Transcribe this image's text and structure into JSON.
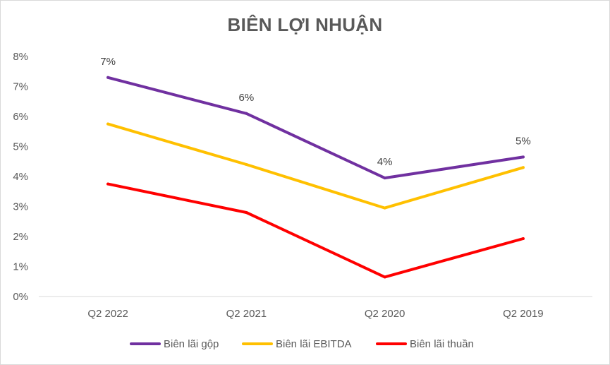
{
  "chart_data": {
    "type": "line",
    "title": "BIÊN LỢI NHUẬN",
    "xlabel": "",
    "ylabel": "",
    "categories": [
      "Q2 2022",
      "Q2 2021",
      "Q2 2020",
      "Q2 2019"
    ],
    "ylim": [
      0,
      8
    ],
    "yticks": [
      "0%",
      "1%",
      "2%",
      "3%",
      "4%",
      "5%",
      "6%",
      "7%",
      "8%"
    ],
    "grid": false,
    "legend_position": "bottom",
    "series": [
      {
        "name": "Biên lãi gộp",
        "color": "#7030a0",
        "values": [
          7.3,
          6.1,
          3.95,
          4.65
        ],
        "data_labels": [
          "7%",
          "6%",
          "4%",
          "5%"
        ]
      },
      {
        "name": "Biên lãi EBITDA",
        "color": "#ffc000",
        "values": [
          5.75,
          4.4,
          2.95,
          4.3
        ],
        "data_labels": []
      },
      {
        "name": "Biên lãi thuần",
        "color": "#ff0000",
        "values": [
          3.75,
          2.8,
          0.65,
          1.93
        ],
        "data_labels": []
      }
    ]
  }
}
